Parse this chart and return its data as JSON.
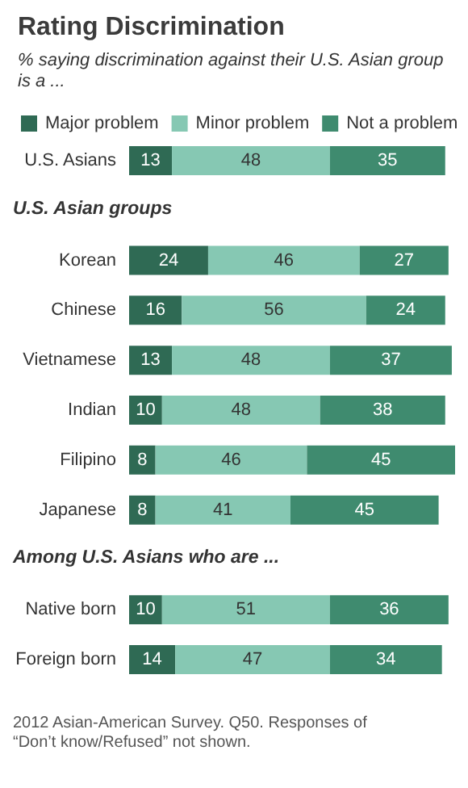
{
  "chart_data": {
    "type": "bar",
    "orientation": "horizontal",
    "stacked": true,
    "title": "Rating Discrimination",
    "subtitle": "% saying discrimination against their U.S. Asian group is a ...",
    "categories": [
      "U.S. Asians",
      "U.S. Asian groups",
      "Korean",
      "Chinese",
      "Vietnamese",
      "Indian",
      "Filipino",
      "Japanese",
      "Among U.S. Asians who are ...",
      "Native born",
      "Foreign born"
    ],
    "series": [
      {
        "name": "Major problem",
        "color": "#2f6a54",
        "values": [
          13,
          null,
          24,
          16,
          13,
          10,
          8,
          8,
          null,
          10,
          14
        ]
      },
      {
        "name": "Minor problem",
        "color": "#86c8b3",
        "values": [
          48,
          null,
          46,
          56,
          48,
          48,
          46,
          41,
          null,
          51,
          47
        ]
      },
      {
        "name": "Not a problem",
        "color": "#3f8b6f",
        "values": [
          35,
          null,
          27,
          24,
          37,
          38,
          45,
          45,
          null,
          36,
          34
        ]
      }
    ],
    "data_labels": true,
    "legend": "top left",
    "annotations": [
      "2012 Asian-American Survey. Q50. Responses of “Don’t know/Refused” not shown."
    ]
  }
}
